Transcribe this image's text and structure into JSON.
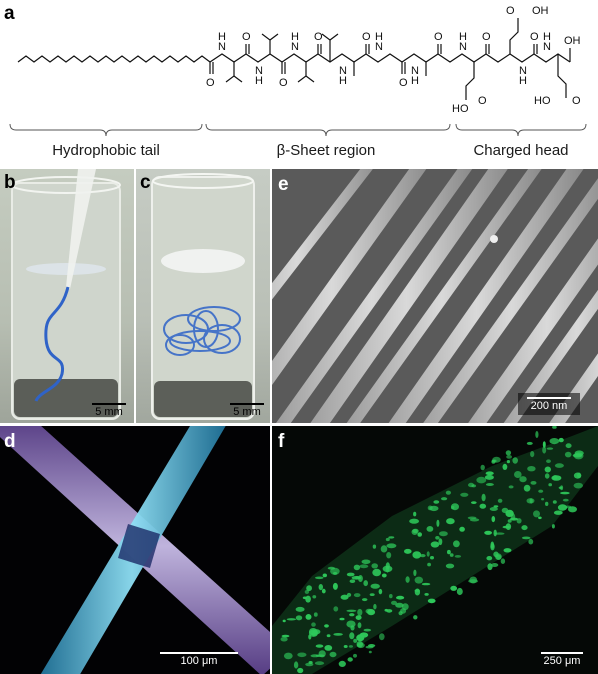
{
  "panels": {
    "a": {
      "label": "a",
      "regions": [
        "Hydrophobic tail",
        "β-Sheet region",
        "Charged head"
      ],
      "atoms": {
        "n": "N",
        "h": "H",
        "o": "O",
        "oh": "OH",
        "ho": "HO"
      }
    },
    "b": {
      "label": "b",
      "scale": "5 mm"
    },
    "c": {
      "label": "c",
      "scale": "5 mm"
    },
    "d": {
      "label": "d",
      "scale": "100 μm"
    },
    "e": {
      "label": "e",
      "scale": "200 nm"
    },
    "f": {
      "label": "f",
      "scale": "250 μm"
    }
  },
  "colors": {
    "gel_blue": "#2f63c8",
    "fiber_cyan": "#45b8e0",
    "fiber_purple": "#8a78c8",
    "cell_green": "#2ec85a"
  }
}
